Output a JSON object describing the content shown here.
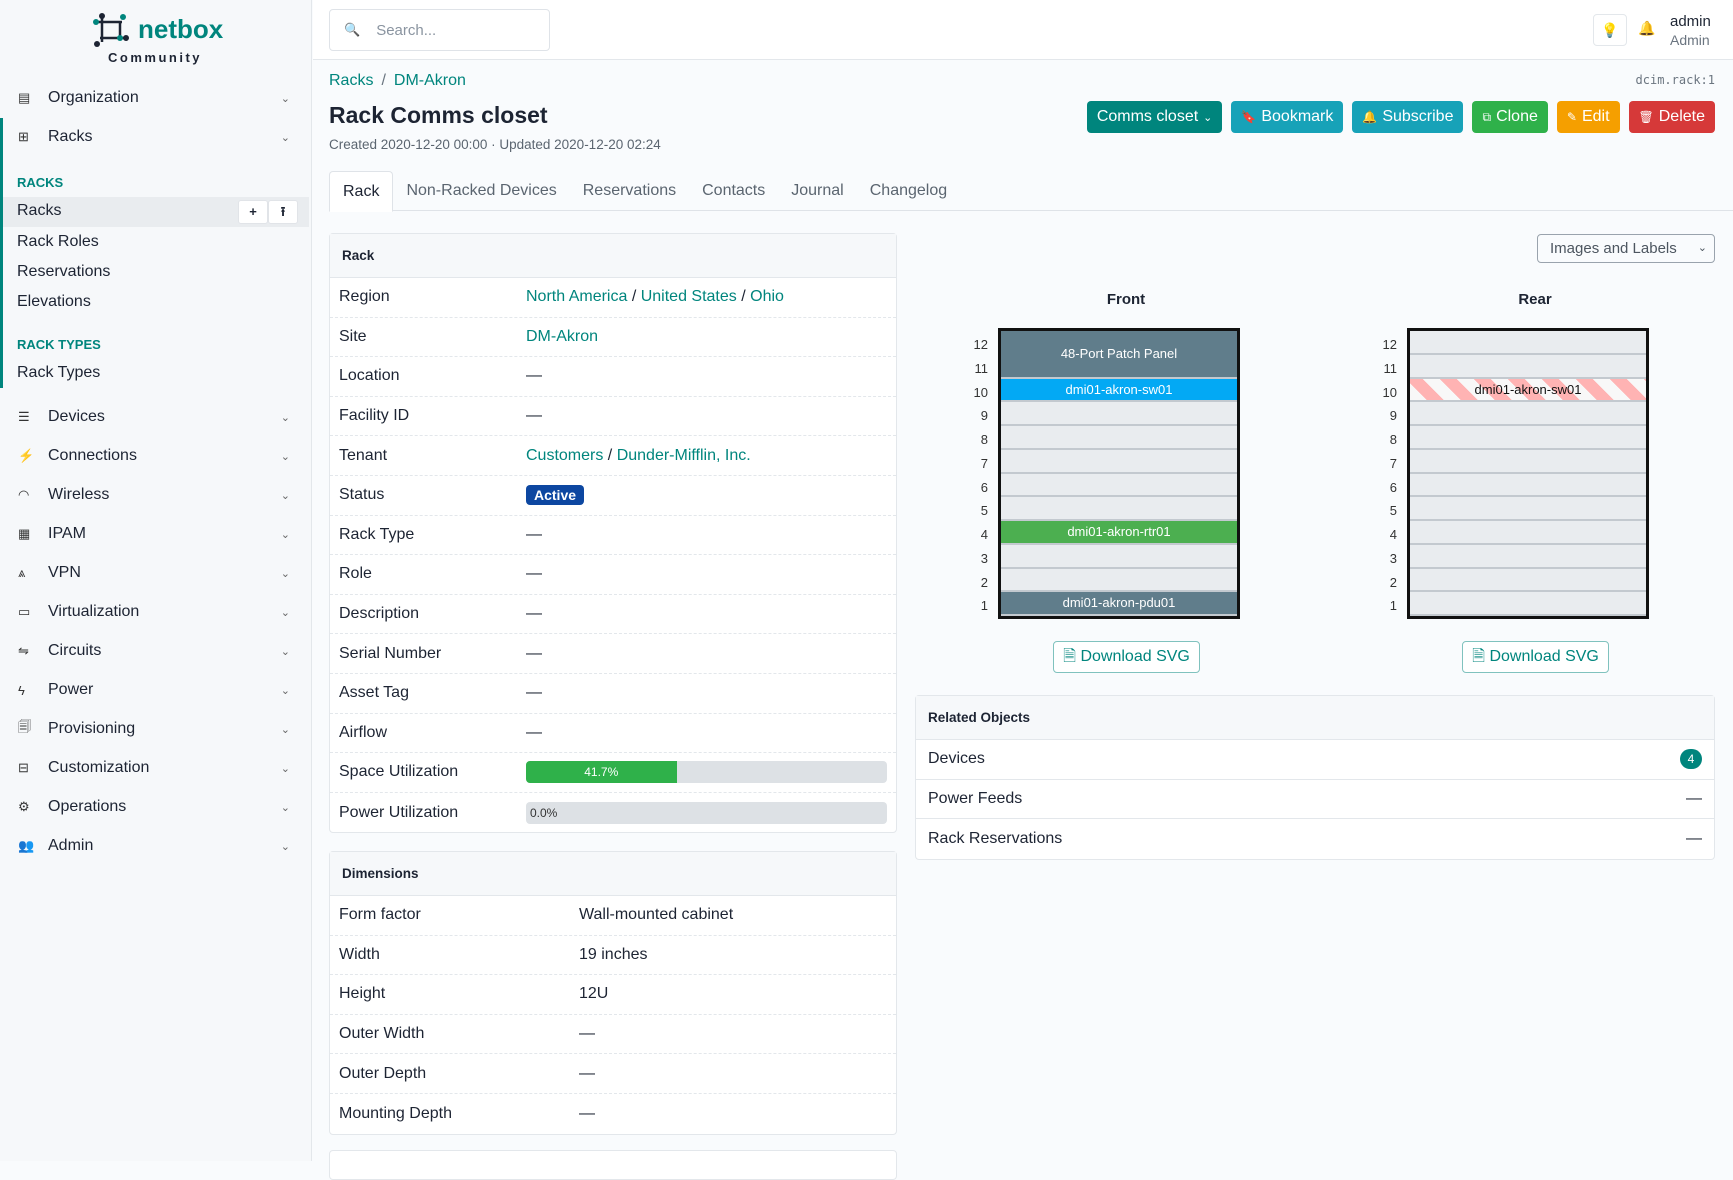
{
  "brand": {
    "name": "netbox",
    "edition": "Community"
  },
  "sidebar": {
    "top": [
      {
        "label": "Organization",
        "icon": "building-icon"
      },
      {
        "label": "Racks",
        "icon": "rack-icon"
      }
    ],
    "sections": [
      {
        "title": "RACKS",
        "items": [
          "Racks",
          "Rack Roles",
          "Reservations",
          "Elevations"
        ]
      },
      {
        "title": "RACK TYPES",
        "items": [
          "Rack Types"
        ]
      }
    ],
    "active_item": "Racks",
    "menus": [
      {
        "label": "Devices",
        "icon": "server-icon"
      },
      {
        "label": "Connections",
        "icon": "plug-icon"
      },
      {
        "label": "Wireless",
        "icon": "wifi-icon"
      },
      {
        "label": "IPAM",
        "icon": "counter-icon"
      },
      {
        "label": "VPN",
        "icon": "tunnel-icon"
      },
      {
        "label": "Virtualization",
        "icon": "monitor-icon"
      },
      {
        "label": "Circuits",
        "icon": "transit-icon"
      },
      {
        "label": "Power",
        "icon": "flash-icon"
      },
      {
        "label": "Provisioning",
        "icon": "file-icon"
      },
      {
        "label": "Customization",
        "icon": "toolbox-icon"
      },
      {
        "label": "Operations",
        "icon": "cogs-icon"
      },
      {
        "label": "Admin",
        "icon": "users-icon"
      }
    ]
  },
  "topbar": {
    "search_placeholder": "Search...",
    "user": "admin",
    "role": "Admin"
  },
  "breadcrumb": [
    "Racks",
    "DM-Akron"
  ],
  "object_id": "dcim.rack:1",
  "title": "Rack Comms closet",
  "meta": "Created 2020-12-20 00:00 · Updated 2020-12-20 02:24",
  "actions": [
    {
      "label": "Comms closet",
      "color": "#00857d",
      "icon": "",
      "caret": "⌄"
    },
    {
      "label": "Bookmark",
      "color": "#17a2b8",
      "icon": "🔖"
    },
    {
      "label": "Subscribe",
      "color": "#17a2b8",
      "icon": "🔔"
    },
    {
      "label": "Clone",
      "color": "#2fb14a",
      "icon": "⧉"
    },
    {
      "label": "Edit",
      "color": "#f59f00",
      "icon": "✎"
    },
    {
      "label": "Delete",
      "color": "#d63939",
      "icon": "🗑"
    }
  ],
  "tabs": [
    "Rack",
    "Non-Racked Devices",
    "Reservations",
    "Contacts",
    "Journal",
    "Changelog"
  ],
  "rack_card": {
    "title": "Rack",
    "region": [
      "North America",
      "United States",
      "Ohio"
    ],
    "site": "DM-Akron",
    "tenant": [
      "Customers",
      "Dunder-Mifflin, Inc."
    ],
    "status": "Active",
    "labels": {
      "region": "Region",
      "site": "Site",
      "location": "Location",
      "facility": "Facility ID",
      "tenant": "Tenant",
      "status": "Status",
      "rack_type": "Rack Type",
      "role": "Role",
      "description": "Description",
      "serial": "Serial Number",
      "asset": "Asset Tag",
      "airflow": "Airflow",
      "space": "Space Utilization",
      "power": "Power Utilization"
    },
    "empty": "—",
    "space_utilization": 41.7,
    "space_text": "41.7%",
    "power_utilization": 0.0,
    "power_text": "0.0%"
  },
  "dimensions": {
    "title": "Dimensions",
    "rows": [
      [
        "Form factor",
        "Wall-mounted cabinet"
      ],
      [
        "Width",
        "19 inches"
      ],
      [
        "Height",
        "12U"
      ],
      [
        "Outer Width",
        "—"
      ],
      [
        "Outer Depth",
        "—"
      ],
      [
        "Mounting Depth",
        "—"
      ]
    ]
  },
  "elevation": {
    "view_select": "Images and Labels",
    "download": "Download SVG",
    "units": 12,
    "front": {
      "label": "Front",
      "devices": [
        {
          "name": "48-Port Patch Panel",
          "top": 12,
          "height": 2,
          "color": "#607d8b"
        },
        {
          "name": "dmi01-akron-sw01",
          "top": 10,
          "height": 1,
          "color": "#03a9f4"
        },
        {
          "name": "dmi01-akron-rtr01",
          "top": 4,
          "height": 1,
          "color": "#4caf50"
        },
        {
          "name": "dmi01-akron-pdu01",
          "top": 1,
          "height": 1,
          "color": "#607d8b"
        }
      ]
    },
    "rear": {
      "label": "Rear",
      "devices": [
        {
          "name": "dmi01-akron-sw01",
          "top": 10,
          "height": 1,
          "color": "hatched"
        }
      ]
    }
  },
  "related": {
    "title": "Related Objects",
    "rows": [
      {
        "label": "Devices",
        "count": "4"
      },
      {
        "label": "Power Feeds",
        "count": "—"
      },
      {
        "label": "Rack Reservations",
        "count": "—"
      }
    ]
  }
}
